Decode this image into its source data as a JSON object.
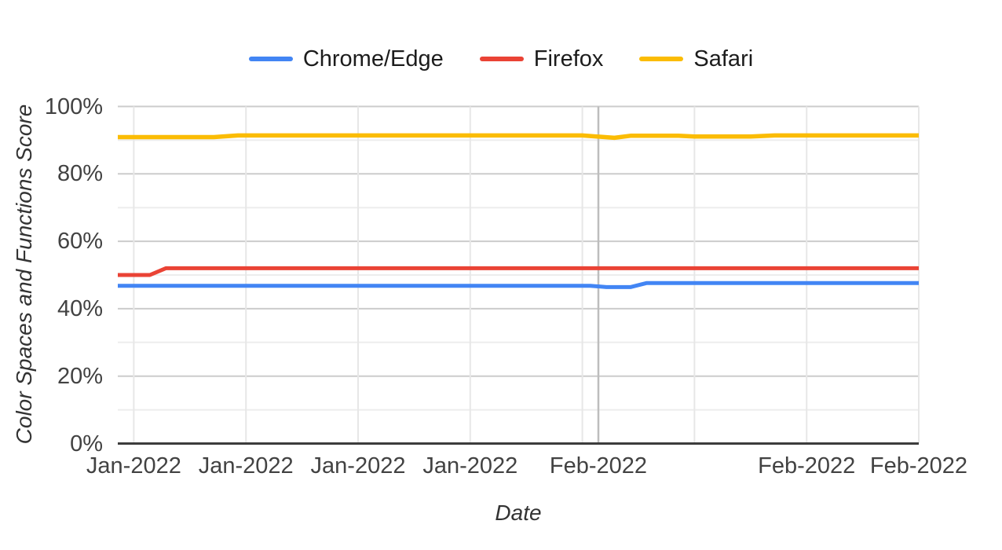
{
  "chart_data": {
    "type": "line",
    "title": "",
    "xlabel": "Date",
    "ylabel": "Color Spaces and Functions Score",
    "ylim": [
      0,
      100
    ],
    "grid": true,
    "legend_position": "top",
    "y_major_ticks": [
      {
        "value": 0,
        "label": "0%"
      },
      {
        "value": 20,
        "label": "20%"
      },
      {
        "value": 40,
        "label": "40%"
      },
      {
        "value": 60,
        "label": "60%"
      },
      {
        "value": 80,
        "label": "80%"
      },
      {
        "value": 100,
        "label": "100%"
      }
    ],
    "y_minor_gridlines": [
      10,
      30,
      50,
      70,
      90
    ],
    "x_axis": {
      "span_units": 50,
      "ticks": [
        {
          "pos": 1,
          "label": "Jan-2022"
        },
        {
          "pos": 8,
          "label": "Jan-2022"
        },
        {
          "pos": 15,
          "label": "Jan-2022"
        },
        {
          "pos": 22,
          "label": "Jan-2022"
        },
        {
          "pos": 29,
          "label": ""
        },
        {
          "pos": 30,
          "label": "Feb-2022",
          "month_boundary": true
        },
        {
          "pos": 36,
          "label": ""
        },
        {
          "pos": 43,
          "label": "Feb-2022"
        },
        {
          "pos": 50,
          "label": "Feb-2022"
        }
      ]
    },
    "series": [
      {
        "name": "Chrome/Edge",
        "color": "#4285F4",
        "points": [
          [
            0,
            46.8
          ],
          [
            29.5,
            46.8
          ],
          [
            30.5,
            46.4
          ],
          [
            32,
            46.4
          ],
          [
            33,
            47.6
          ],
          [
            50,
            47.6
          ]
        ]
      },
      {
        "name": "Firefox",
        "color": "#EA4335",
        "points": [
          [
            0,
            50.0
          ],
          [
            2,
            50.0
          ],
          [
            3,
            52.0
          ],
          [
            50,
            52.0
          ]
        ]
      },
      {
        "name": "Safari",
        "color": "#FBBC04",
        "points": [
          [
            0,
            90.9
          ],
          [
            6,
            90.9
          ],
          [
            7.5,
            91.4
          ],
          [
            29,
            91.4
          ],
          [
            31,
            90.7
          ],
          [
            32,
            91.3
          ],
          [
            35,
            91.3
          ],
          [
            36,
            91.1
          ],
          [
            39.5,
            91.1
          ],
          [
            41,
            91.4
          ],
          [
            50,
            91.4
          ]
        ]
      }
    ],
    "style_colors": {
      "axis_line": "#3c3c3c",
      "major_gridline": "#cccccc",
      "minor_gridline": "#ededed",
      "vertical_gridline": "#e7e7e7",
      "month_boundary_gridline": "#bdbdbd",
      "tick_text": "#424242"
    }
  }
}
